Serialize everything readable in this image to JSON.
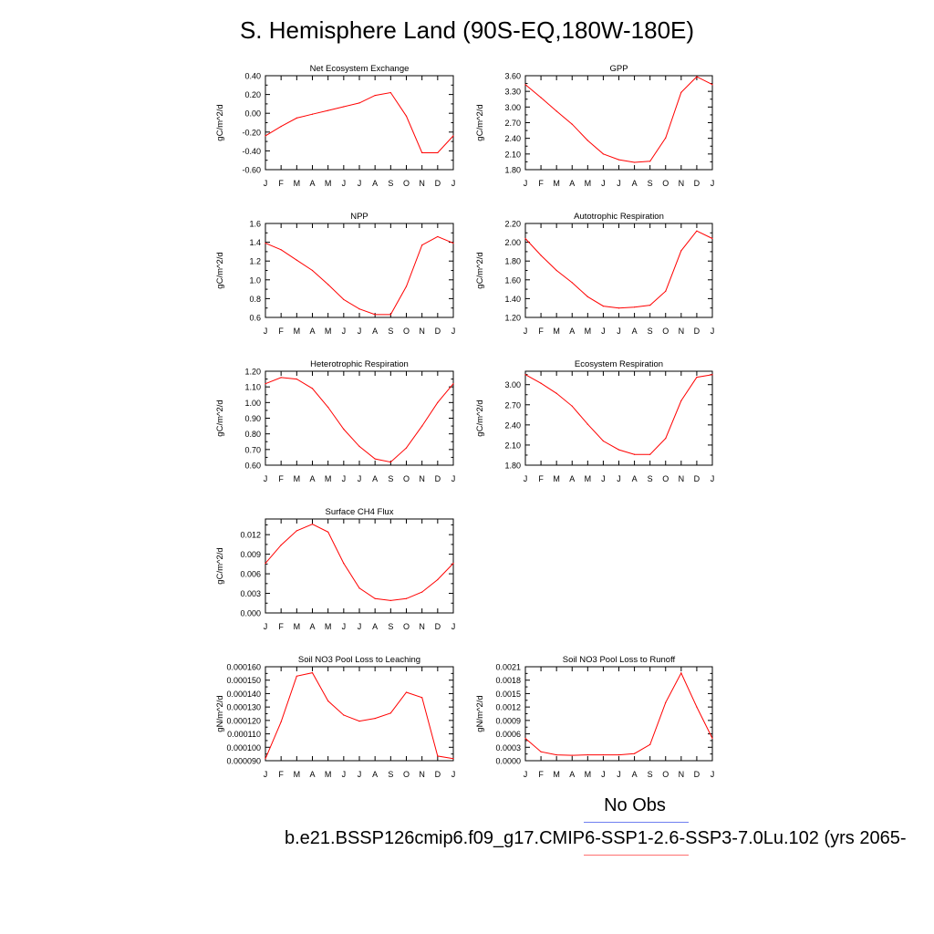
{
  "page": {
    "title": "S. Hemisphere Land (90S-EQ,180W-180E)"
  },
  "legend": {
    "obs_label": "No Obs",
    "case_label": "b.e21.BSSP126cmip6.f09_g17.CMIP6-SSP1-2.6-SSP3-7.0Lu.102 (yrs 2065-",
    "obs_color": "#6f7ff0",
    "case_color": "#ff7070"
  },
  "chart_data": [
    {
      "type": "line",
      "title": "Net Ecosystem Exchange",
      "ylabel": "gC/m^2/d",
      "categories": [
        "J",
        "F",
        "M",
        "A",
        "M",
        "J",
        "J",
        "A",
        "S",
        "O",
        "N",
        "D",
        "J"
      ],
      "ylim": [
        -0.6,
        0.4
      ],
      "yticks": [
        "-0.60",
        "-0.40",
        "-0.20",
        "0.00",
        "0.20",
        "0.40"
      ],
      "tick_values": [
        -0.6,
        -0.4,
        -0.2,
        0.0,
        0.2,
        0.4
      ],
      "values": [
        -0.24,
        -0.14,
        -0.05,
        -0.01,
        0.03,
        0.07,
        0.11,
        0.19,
        0.22,
        -0.03,
        -0.42,
        -0.42,
        -0.24
      ],
      "color": "#ff0000"
    },
    {
      "type": "line",
      "title": "GPP",
      "ylabel": "gC/m^2/d",
      "categories": [
        "J",
        "F",
        "M",
        "A",
        "M",
        "J",
        "J",
        "A",
        "S",
        "O",
        "N",
        "D",
        "J"
      ],
      "ylim": [
        1.8,
        3.6
      ],
      "yticks": [
        "1.80",
        "2.10",
        "2.40",
        "2.70",
        "3.00",
        "3.30",
        "3.60"
      ],
      "tick_values": [
        1.8,
        2.1,
        2.4,
        2.7,
        3.0,
        3.3,
        3.6
      ],
      "values": [
        3.43,
        3.18,
        2.92,
        2.67,
        2.36,
        2.1,
        1.99,
        1.94,
        1.96,
        2.41,
        3.28,
        3.58,
        3.43
      ],
      "color": "#ff0000"
    },
    {
      "type": "line",
      "title": "NPP",
      "ylabel": "gC/m^2/d",
      "categories": [
        "J",
        "F",
        "M",
        "A",
        "M",
        "J",
        "J",
        "A",
        "S",
        "O",
        "N",
        "D",
        "J"
      ],
      "ylim": [
        0.6,
        1.6
      ],
      "yticks": [
        "0.6",
        "0.8",
        "1.0",
        "1.2",
        "1.4",
        "1.6"
      ],
      "tick_values": [
        0.6,
        0.8,
        1.0,
        1.2,
        1.4,
        1.6
      ],
      "values": [
        1.39,
        1.32,
        1.21,
        1.1,
        0.95,
        0.79,
        0.69,
        0.63,
        0.63,
        0.93,
        1.37,
        1.46,
        1.39
      ],
      "color": "#ff0000"
    },
    {
      "type": "line",
      "title": "Autotrophic Respiration",
      "ylabel": "gC/m^2/d",
      "categories": [
        "J",
        "F",
        "M",
        "A",
        "M",
        "J",
        "J",
        "A",
        "S",
        "O",
        "N",
        "D",
        "J"
      ],
      "ylim": [
        1.2,
        2.2
      ],
      "yticks": [
        "1.20",
        "1.40",
        "1.60",
        "1.80",
        "2.00",
        "2.20"
      ],
      "tick_values": [
        1.2,
        1.4,
        1.6,
        1.8,
        2.0,
        2.2
      ],
      "values": [
        2.04,
        1.86,
        1.7,
        1.57,
        1.42,
        1.32,
        1.3,
        1.31,
        1.33,
        1.48,
        1.91,
        2.12,
        2.04
      ],
      "color": "#ff0000"
    },
    {
      "type": "line",
      "title": "Heterotrophic Respiration",
      "ylabel": "gC/m^2/d",
      "categories": [
        "J",
        "F",
        "M",
        "A",
        "M",
        "J",
        "J",
        "A",
        "S",
        "O",
        "N",
        "D",
        "J"
      ],
      "ylim": [
        0.6,
        1.2
      ],
      "yticks": [
        "0.60",
        "0.70",
        "0.80",
        "0.90",
        "1.00",
        "1.10",
        "1.20"
      ],
      "tick_values": [
        0.6,
        0.7,
        0.8,
        0.9,
        1.0,
        1.1,
        1.2
      ],
      "values": [
        1.12,
        1.16,
        1.15,
        1.09,
        0.97,
        0.83,
        0.72,
        0.64,
        0.62,
        0.71,
        0.85,
        1.0,
        1.12
      ],
      "color": "#ff0000"
    },
    {
      "type": "line",
      "title": "Ecosystem Respiration",
      "ylabel": "gC/m^2/d",
      "categories": [
        "J",
        "F",
        "M",
        "A",
        "M",
        "J",
        "J",
        "A",
        "S",
        "O",
        "N",
        "D",
        "J"
      ],
      "ylim": [
        1.8,
        3.2
      ],
      "yticks": [
        "1.80",
        "2.10",
        "2.40",
        "2.70",
        "3.00"
      ],
      "tick_values": [
        1.8,
        2.1,
        2.4,
        2.7,
        3.0
      ],
      "values": [
        3.15,
        3.02,
        2.87,
        2.68,
        2.41,
        2.16,
        2.03,
        1.96,
        1.96,
        2.2,
        2.76,
        3.11,
        3.15
      ],
      "color": "#ff0000"
    },
    {
      "type": "line",
      "title": "Surface CH4 Flux",
      "ylabel": "gC/m^2/d",
      "categories": [
        "J",
        "F",
        "M",
        "A",
        "M",
        "J",
        "J",
        "A",
        "S",
        "O",
        "N",
        "D",
        "J"
      ],
      "ylim": [
        0.0,
        0.0144
      ],
      "yticks": [
        "0.000",
        "0.003",
        "0.006",
        "0.009",
        "0.012"
      ],
      "tick_values": [
        0.0,
        0.003,
        0.006,
        0.009,
        0.012
      ],
      "values": [
        0.0076,
        0.0104,
        0.0126,
        0.0136,
        0.0124,
        0.0076,
        0.0038,
        0.0022,
        0.0019,
        0.0022,
        0.0032,
        0.0051,
        0.0076
      ],
      "color": "#ff0000"
    },
    {
      "type": "line",
      "title": "Soil NO3 Pool Loss to Leaching",
      "ylabel": "gN/m^2/d",
      "categories": [
        "J",
        "F",
        "M",
        "A",
        "M",
        "J",
        "J",
        "A",
        "S",
        "O",
        "N",
        "D",
        "J"
      ],
      "ylim": [
        9e-05,
        0.00016
      ],
      "yticks": [
        "0.000090",
        "0.000100",
        "0.000110",
        "0.000120",
        "0.000130",
        "0.000140",
        "0.000150",
        "0.000160"
      ],
      "tick_values": [
        9e-05,
        0.0001,
        0.00011,
        0.00012,
        0.00013,
        0.00014,
        0.00015,
        0.00016
      ],
      "values": [
        9.15e-05,
        0.000119,
        0.000153,
        0.0001555,
        0.0001345,
        0.000124,
        0.0001195,
        0.0001215,
        0.0001255,
        0.000141,
        0.000137,
        9.35e-05,
        9.15e-05
      ],
      "color": "#ff0000"
    },
    {
      "type": "line",
      "title": "Soil NO3 Pool Loss to Runoff",
      "ylabel": "gN/m^2/d",
      "categories": [
        "J",
        "F",
        "M",
        "A",
        "M",
        "J",
        "J",
        "A",
        "S",
        "O",
        "N",
        "D",
        "J"
      ],
      "ylim": [
        0.0,
        0.0021
      ],
      "yticks": [
        "0.0000",
        "0.0003",
        "0.0006",
        "0.0009",
        "0.0012",
        "0.0015",
        "0.0018",
        "0.0021"
      ],
      "tick_values": [
        0.0,
        0.0003,
        0.0006,
        0.0009,
        0.0012,
        0.0015,
        0.0018,
        0.0021
      ],
      "values": [
        0.0005,
        0.0002,
        0.00013,
        0.00012,
        0.00013,
        0.00013,
        0.00013,
        0.00016,
        0.00036,
        0.0013,
        0.00196,
        0.0012,
        0.0005
      ],
      "color": "#ff0000"
    }
  ]
}
